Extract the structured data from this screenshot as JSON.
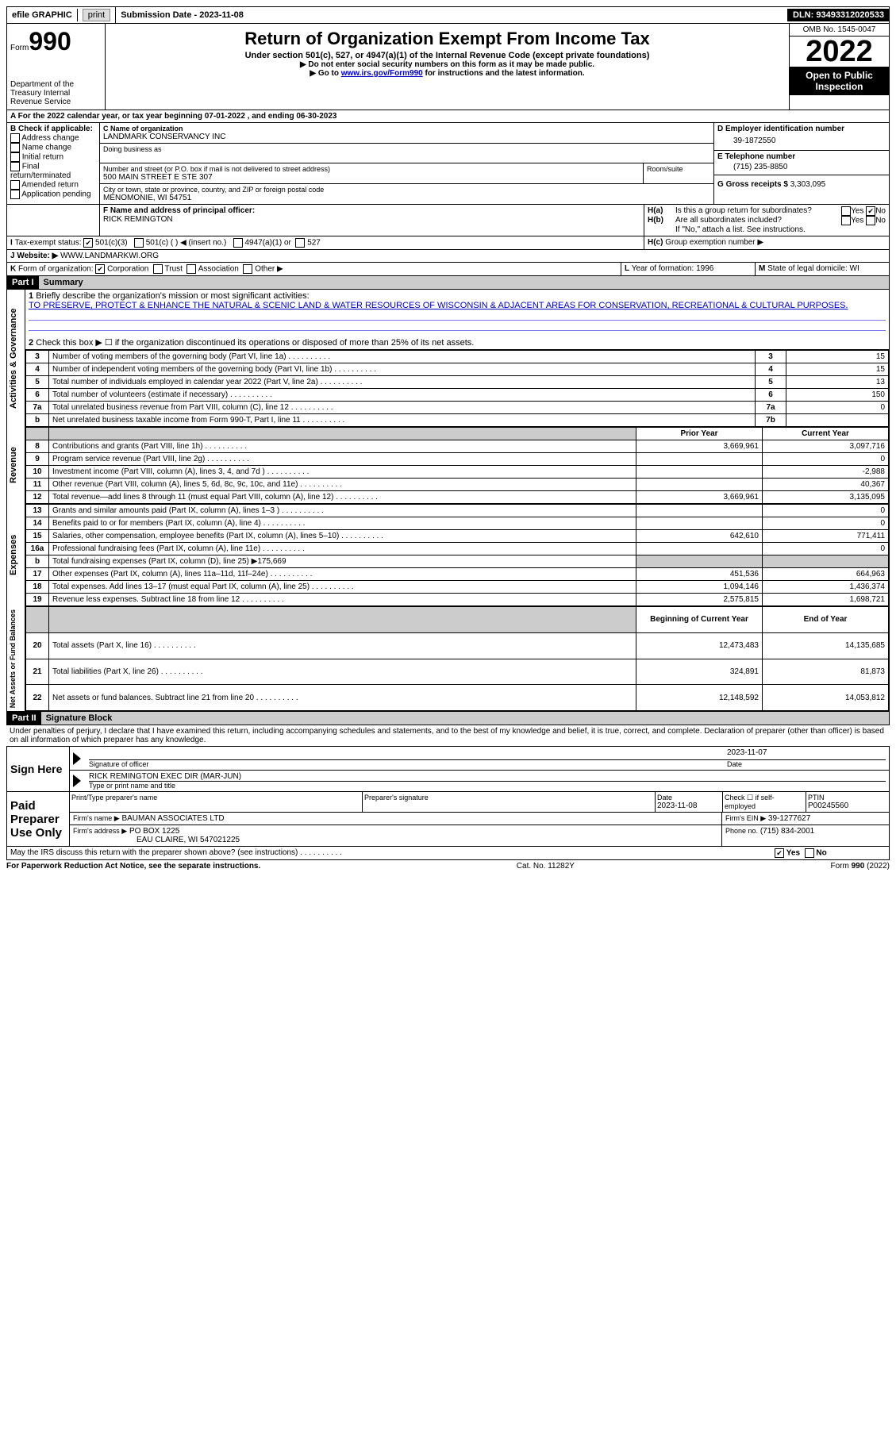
{
  "topbar": {
    "efile": "efile GRAPHIC",
    "print": "print",
    "sub_label": "Submission Date - ",
    "sub_date": "2023-11-08",
    "dln_label": "DLN: ",
    "dln": "93493312020533"
  },
  "header": {
    "form_word": "Form",
    "form_num": "990",
    "dept": "Department of the Treasury Internal Revenue Service",
    "title": "Return of Organization Exempt From Income Tax",
    "subtitle": "Under section 501(c), 527, or 4947(a)(1) of the Internal Revenue Code (except private foundations)",
    "note1": "▶ Do not enter social security numbers on this form as it may be made public.",
    "note2_pre": "▶ Go to ",
    "note2_link": "www.irs.gov/Form990",
    "note2_post": " for instructions and the latest information.",
    "omb": "OMB No. 1545-0047",
    "year": "2022",
    "open": "Open to Public Inspection"
  },
  "A": {
    "text_pre": "For the 2022 calendar year, or tax year beginning ",
    "begin": "07-01-2022",
    "mid": " , and ending ",
    "end": "06-30-2023"
  },
  "B": {
    "label": "Check if applicable:",
    "opts": [
      "Address change",
      "Name change",
      "Initial return",
      "Final return/terminated",
      "Amended return",
      "Application pending"
    ]
  },
  "C": {
    "name_lbl": "Name of organization",
    "name": "LANDMARK CONSERVANCY INC",
    "dba_lbl": "Doing business as",
    "addr_lbl": "Number and street (or P.O. box if mail is not delivered to street address)",
    "addr": "500 MAIN STREET E STE 307",
    "room_lbl": "Room/suite",
    "city_lbl": "City or town, state or province, country, and ZIP or foreign postal code",
    "city": "MENOMONIE, WI  54751"
  },
  "D": {
    "lbl": "Employer identification number",
    "val": "39-1872550"
  },
  "E": {
    "lbl": "Telephone number",
    "val": "(715) 235-8850"
  },
  "G": {
    "lbl": "Gross receipts $",
    "val": "3,303,095"
  },
  "F": {
    "lbl": "Name and address of principal officer:",
    "val": "RICK REMINGTON"
  },
  "H": {
    "a": "Is this a group return for subordinates?",
    "b": "Are all subordinates included?",
    "note": "If \"No,\" attach a list. See instructions.",
    "c": "Group exemption number ▶",
    "yes": "Yes",
    "no": "No"
  },
  "I": {
    "lbl": "Tax-exempt status:",
    "o1": "501(c)(3)",
    "o2": "501(c) (   ) ◀ (insert no.)",
    "o3": "4947(a)(1) or",
    "o4": "527"
  },
  "J": {
    "lbl": "Website: ▶",
    "val": "WWW.LANDMARKWI.ORG"
  },
  "K": {
    "lbl": "Form of organization:",
    "o1": "Corporation",
    "o2": "Trust",
    "o3": "Association",
    "o4": "Other ▶"
  },
  "L": {
    "lbl": "Year of formation:",
    "val": "1996"
  },
  "M": {
    "lbl": "State of legal domicile:",
    "val": "WI"
  },
  "part1": {
    "hdr": "Part I",
    "title": "Summary"
  },
  "summary": {
    "l1_lbl": "Briefly describe the organization's mission or most significant activities:",
    "l1_txt": "TO PRESERVE, PROTECT & ENHANCE THE NATURAL & SCENIC LAND & WATER RESOURCES OF WISCONSIN & ADJACENT AREAS FOR CONSERVATION, RECREATIONAL & CULTURAL PURPOSES.",
    "l2": "Check this box ▶ ☐ if the organization discontinued its operations or disposed of more than 25% of its net assets.",
    "rows_ag": [
      {
        "n": "3",
        "t": "Number of voting members of the governing body (Part VI, line 1a)",
        "box": "3",
        "v": "15"
      },
      {
        "n": "4",
        "t": "Number of independent voting members of the governing body (Part VI, line 1b)",
        "box": "4",
        "v": "15"
      },
      {
        "n": "5",
        "t": "Total number of individuals employed in calendar year 2022 (Part V, line 2a)",
        "box": "5",
        "v": "13"
      },
      {
        "n": "6",
        "t": "Total number of volunteers (estimate if necessary)",
        "box": "6",
        "v": "150"
      },
      {
        "n": "7a",
        "t": "Total unrelated business revenue from Part VIII, column (C), line 12",
        "box": "7a",
        "v": "0"
      },
      {
        "n": "b",
        "t": "Net unrelated business taxable income from Form 990-T, Part I, line 11",
        "box": "7b",
        "v": ""
      }
    ],
    "col_prior": "Prior Year",
    "col_curr": "Current Year",
    "rev": [
      {
        "n": "8",
        "t": "Contributions and grants (Part VIII, line 1h)",
        "p": "3,669,961",
        "c": "3,097,716"
      },
      {
        "n": "9",
        "t": "Program service revenue (Part VIII, line 2g)",
        "p": "",
        "c": "0"
      },
      {
        "n": "10",
        "t": "Investment income (Part VIII, column (A), lines 3, 4, and 7d )",
        "p": "",
        "c": "-2,988"
      },
      {
        "n": "11",
        "t": "Other revenue (Part VIII, column (A), lines 5, 6d, 8c, 9c, 10c, and 11e)",
        "p": "",
        "c": "40,367"
      },
      {
        "n": "12",
        "t": "Total revenue—add lines 8 through 11 (must equal Part VIII, column (A), line 12)",
        "p": "3,669,961",
        "c": "3,135,095"
      }
    ],
    "exp": [
      {
        "n": "13",
        "t": "Grants and similar amounts paid (Part IX, column (A), lines 1–3 )",
        "p": "",
        "c": "0"
      },
      {
        "n": "14",
        "t": "Benefits paid to or for members (Part IX, column (A), line 4)",
        "p": "",
        "c": "0"
      },
      {
        "n": "15",
        "t": "Salaries, other compensation, employee benefits (Part IX, column (A), lines 5–10)",
        "p": "642,610",
        "c": "771,411"
      },
      {
        "n": "16a",
        "t": "Professional fundraising fees (Part IX, column (A), line 11e)",
        "p": "",
        "c": "0"
      },
      {
        "n": "b",
        "t": "Total fundraising expenses (Part IX, column (D), line 25) ▶175,669",
        "p": "shade",
        "c": "shade"
      },
      {
        "n": "17",
        "t": "Other expenses (Part IX, column (A), lines 11a–11d, 11f–24e)",
        "p": "451,536",
        "c": "664,963"
      },
      {
        "n": "18",
        "t": "Total expenses. Add lines 13–17 (must equal Part IX, column (A), line 25)",
        "p": "1,094,146",
        "c": "1,436,374"
      },
      {
        "n": "19",
        "t": "Revenue less expenses. Subtract line 18 from line 12",
        "p": "2,575,815",
        "c": "1,698,721"
      }
    ],
    "col_beg": "Beginning of Current Year",
    "col_end": "End of Year",
    "na": [
      {
        "n": "20",
        "t": "Total assets (Part X, line 16)",
        "p": "12,473,483",
        "c": "14,135,685"
      },
      {
        "n": "21",
        "t": "Total liabilities (Part X, line 26)",
        "p": "324,891",
        "c": "81,873"
      },
      {
        "n": "22",
        "t": "Net assets or fund balances. Subtract line 21 from line 20",
        "p": "12,148,592",
        "c": "14,053,812"
      }
    ],
    "side_ag": "Activities & Governance",
    "side_rev": "Revenue",
    "side_exp": "Expenses",
    "side_na": "Net Assets or Fund Balances"
  },
  "part2": {
    "hdr": "Part II",
    "title": "Signature Block"
  },
  "sig": {
    "decl": "Under penalties of perjury, I declare that I have examined this return, including accompanying schedules and statements, and to the best of my knowledge and belief, it is true, correct, and complete. Declaration of preparer (other than officer) is based on all information of which preparer has any knowledge.",
    "sign_here": "Sign Here",
    "sig_officer": "Signature of officer",
    "date": "Date",
    "sig_date": "2023-11-07",
    "name_title": "RICK REMINGTON  EXEC DIR (MAR-JUN)",
    "name_lbl": "Type or print name and title",
    "paid": "Paid Preparer Use Only",
    "prep_name_lbl": "Print/Type preparer's name",
    "prep_sig_lbl": "Preparer's signature",
    "prep_date_lbl": "Date",
    "prep_date": "2023-11-08",
    "check_lbl": "Check ☐ if self-employed",
    "ptin_lbl": "PTIN",
    "ptin": "P00245560",
    "firm_name_lbl": "Firm's name    ▶",
    "firm_name": "BAUMAN ASSOCIATES LTD",
    "firm_ein_lbl": "Firm's EIN ▶",
    "firm_ein": "39-1277627",
    "firm_addr_lbl": "Firm's address ▶",
    "firm_addr1": "PO BOX 1225",
    "firm_addr2": "EAU CLAIRE, WI  547021225",
    "phone_lbl": "Phone no.",
    "phone": "(715) 834-2001",
    "may": "May the IRS discuss this return with the preparer shown above? (see instructions)"
  },
  "footer": {
    "pra": "For Paperwork Reduction Act Notice, see the separate instructions.",
    "cat": "Cat. No. 11282Y",
    "form": "Form 990 (2022)"
  }
}
